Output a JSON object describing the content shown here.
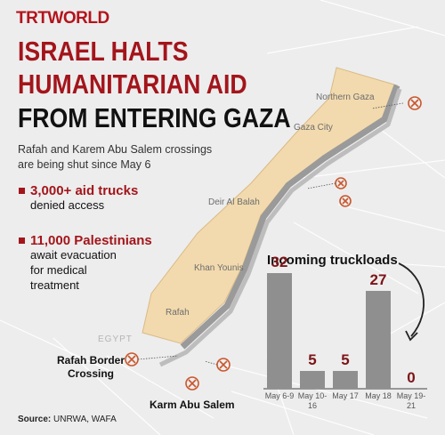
{
  "logo": "TRTWORLD",
  "title_lines": [
    "ISRAEL HALTS",
    "HUMANITARIAN AID",
    "FROM ENTERING GAZA"
  ],
  "subtitle": "Rafah and Karem Abu Salem crossings are being shut since May 6",
  "bullets": [
    {
      "headline": "3,000+ aid trucks",
      "text": "denied access"
    },
    {
      "headline": "11,000 Palestinians",
      "text": "await evacuation for medical treatment"
    }
  ],
  "map_labels": [
    "Northern Gaza",
    "Gaza City",
    "Deir Al Balah",
    "Khan Younis",
    "Rafah",
    "EGYPT"
  ],
  "crossings": [
    "Rafah Border Crossing",
    "Karm Abu Salem"
  ],
  "source": {
    "label": "Source:",
    "text": "UNRWA, WAFA"
  },
  "chart_data": {
    "type": "bar",
    "title": "Incoming truckloads",
    "categories": [
      "May 6-9",
      "May 10-16",
      "May 17",
      "May 18",
      "May 19-21"
    ],
    "values": [
      32,
      5,
      5,
      27,
      0
    ],
    "color": "#8f8f8f",
    "label_color": "#7d1418"
  }
}
